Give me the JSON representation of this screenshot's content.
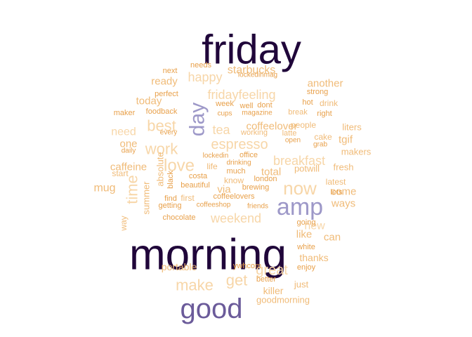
{
  "wordcloud": {
    "palette": {
      "darkest": "#20063a",
      "dark_purple": "#6b5b9a",
      "lavender": "#9d98c8",
      "orange": "#e8a04a",
      "light_orange": "#f0bb78",
      "pale_peach": "#f7d6a8"
    },
    "words": [
      {
        "text": "friday",
        "color": "#20063a"
      },
      {
        "text": "morning",
        "color": "#20063a"
      },
      {
        "text": "good",
        "color": "#6b5b9a"
      },
      {
        "text": "amp",
        "color": "#9d98c8"
      },
      {
        "text": "day",
        "color": "#9d98c8"
      },
      {
        "text": "now",
        "color": "#f7d6a8"
      },
      {
        "text": "love",
        "color": "#f7d6a8"
      },
      {
        "text": "time",
        "color": "#f7d6a8"
      },
      {
        "text": "best",
        "color": "#f7d6a8"
      },
      {
        "text": "work",
        "color": "#f7d6a8"
      },
      {
        "text": "make",
        "color": "#f7d6a8"
      },
      {
        "text": "get",
        "color": "#f7d6a8"
      },
      {
        "text": "great",
        "color": "#f7d6a8"
      },
      {
        "text": "weekend",
        "color": "#f7d6a8"
      },
      {
        "text": "espresso",
        "color": "#f7d6a8"
      },
      {
        "text": "breakfast",
        "color": "#f7d6a8"
      },
      {
        "text": "fridayfeeling",
        "color": "#f7d6a8"
      },
      {
        "text": "happy",
        "color": "#f7d6a8"
      },
      {
        "text": "tea",
        "color": "#f7d6a8"
      },
      {
        "text": "need",
        "color": "#f7d6a8"
      },
      {
        "text": "new",
        "color": "#f7d6a8"
      },
      {
        "text": "starbucks",
        "color": "#f0bb78"
      },
      {
        "text": "another",
        "color": "#f0bb78"
      },
      {
        "text": "ready",
        "color": "#f0bb78"
      },
      {
        "text": "today",
        "color": "#f0bb78"
      },
      {
        "text": "one",
        "color": "#f0bb78"
      },
      {
        "text": "caffeine",
        "color": "#f0bb78"
      },
      {
        "text": "mug",
        "color": "#f0bb78"
      },
      {
        "text": "coffeelover",
        "color": "#f0bb78"
      },
      {
        "text": "total",
        "color": "#f0bb78"
      },
      {
        "text": "via",
        "color": "#f0bb78"
      },
      {
        "text": "come",
        "color": "#f0bb78"
      },
      {
        "text": "ways",
        "color": "#f0bb78"
      },
      {
        "text": "tgif",
        "color": "#f0bb78"
      },
      {
        "text": "like",
        "color": "#f0bb78"
      },
      {
        "text": "can",
        "color": "#f0bb78"
      },
      {
        "text": "thanks",
        "color": "#f0bb78"
      },
      {
        "text": "portable",
        "color": "#f0bb78"
      },
      {
        "text": "just",
        "color": "#f0bb78"
      },
      {
        "text": "killer",
        "color": "#f0bb78"
      },
      {
        "text": "goodmorning",
        "color": "#f0bb78"
      },
      {
        "text": "summer",
        "color": "#f0bb78"
      },
      {
        "text": "absolute",
        "color": "#f0bb78"
      },
      {
        "text": "potwill",
        "color": "#f0bb78"
      },
      {
        "text": "liters",
        "color": "#f0bb78"
      },
      {
        "text": "makers",
        "color": "#f0bb78"
      },
      {
        "text": "fresh",
        "color": "#f0bb78"
      },
      {
        "text": "latest",
        "color": "#f0bb78"
      },
      {
        "text": "people",
        "color": "#f0bb78"
      },
      {
        "text": "drink",
        "color": "#f0bb78"
      },
      {
        "text": "cake",
        "color": "#f0bb78"
      },
      {
        "text": "start",
        "color": "#f0bb78"
      },
      {
        "text": "way",
        "color": "#f0bb78"
      },
      {
        "text": "know",
        "color": "#f0bb78"
      },
      {
        "text": "working",
        "color": "#f0bb78"
      },
      {
        "text": "break",
        "color": "#f0bb78"
      },
      {
        "text": "latte",
        "color": "#f0bb78"
      },
      {
        "text": "first",
        "color": "#f0bb78"
      },
      {
        "text": "life",
        "color": "#f0bb78"
      },
      {
        "text": "next",
        "color": "#e8a04a"
      },
      {
        "text": "needs",
        "color": "#e8a04a"
      },
      {
        "text": "lockedinmag",
        "color": "#e8a04a"
      },
      {
        "text": "strong",
        "color": "#e8a04a"
      },
      {
        "text": "perfect",
        "color": "#e8a04a"
      },
      {
        "text": "week",
        "color": "#e8a04a"
      },
      {
        "text": "well",
        "color": "#e8a04a"
      },
      {
        "text": "dont",
        "color": "#e8a04a"
      },
      {
        "text": "hot",
        "color": "#e8a04a"
      },
      {
        "text": "cups",
        "color": "#e8a04a"
      },
      {
        "text": "magazine",
        "color": "#e8a04a"
      },
      {
        "text": "right",
        "color": "#e8a04a"
      },
      {
        "text": "maker",
        "color": "#e8a04a"
      },
      {
        "text": "foodback",
        "color": "#e8a04a"
      },
      {
        "text": "every",
        "color": "#e8a04a"
      },
      {
        "text": "daily",
        "color": "#e8a04a"
      },
      {
        "text": "open",
        "color": "#e8a04a"
      },
      {
        "text": "grab",
        "color": "#e8a04a"
      },
      {
        "text": "lockedin",
        "color": "#e8a04a"
      },
      {
        "text": "office",
        "color": "#e8a04a"
      },
      {
        "text": "drinking",
        "color": "#e8a04a"
      },
      {
        "text": "much",
        "color": "#e8a04a"
      },
      {
        "text": "black",
        "color": "#e8a04a"
      },
      {
        "text": "costa",
        "color": "#e8a04a"
      },
      {
        "text": "london",
        "color": "#e8a04a"
      },
      {
        "text": "beautiful",
        "color": "#e8a04a"
      },
      {
        "text": "brewing",
        "color": "#e8a04a"
      },
      {
        "text": "lets",
        "color": "#e8a04a"
      },
      {
        "text": "find",
        "color": "#e8a04a"
      },
      {
        "text": "coffeelovers",
        "color": "#e8a04a"
      },
      {
        "text": "getting",
        "color": "#e8a04a"
      },
      {
        "text": "coffeeshop",
        "color": "#e8a04a"
      },
      {
        "text": "friends",
        "color": "#e8a04a"
      },
      {
        "text": "chocolate",
        "color": "#e8a04a"
      },
      {
        "text": "going",
        "color": "#e8a04a"
      },
      {
        "text": "white",
        "color": "#e8a04a"
      },
      {
        "text": "ywhcom",
        "color": "#e8a04a"
      },
      {
        "text": "enjoy",
        "color": "#e8a04a"
      },
      {
        "text": "better",
        "color": "#e8a04a"
      }
    ]
  }
}
